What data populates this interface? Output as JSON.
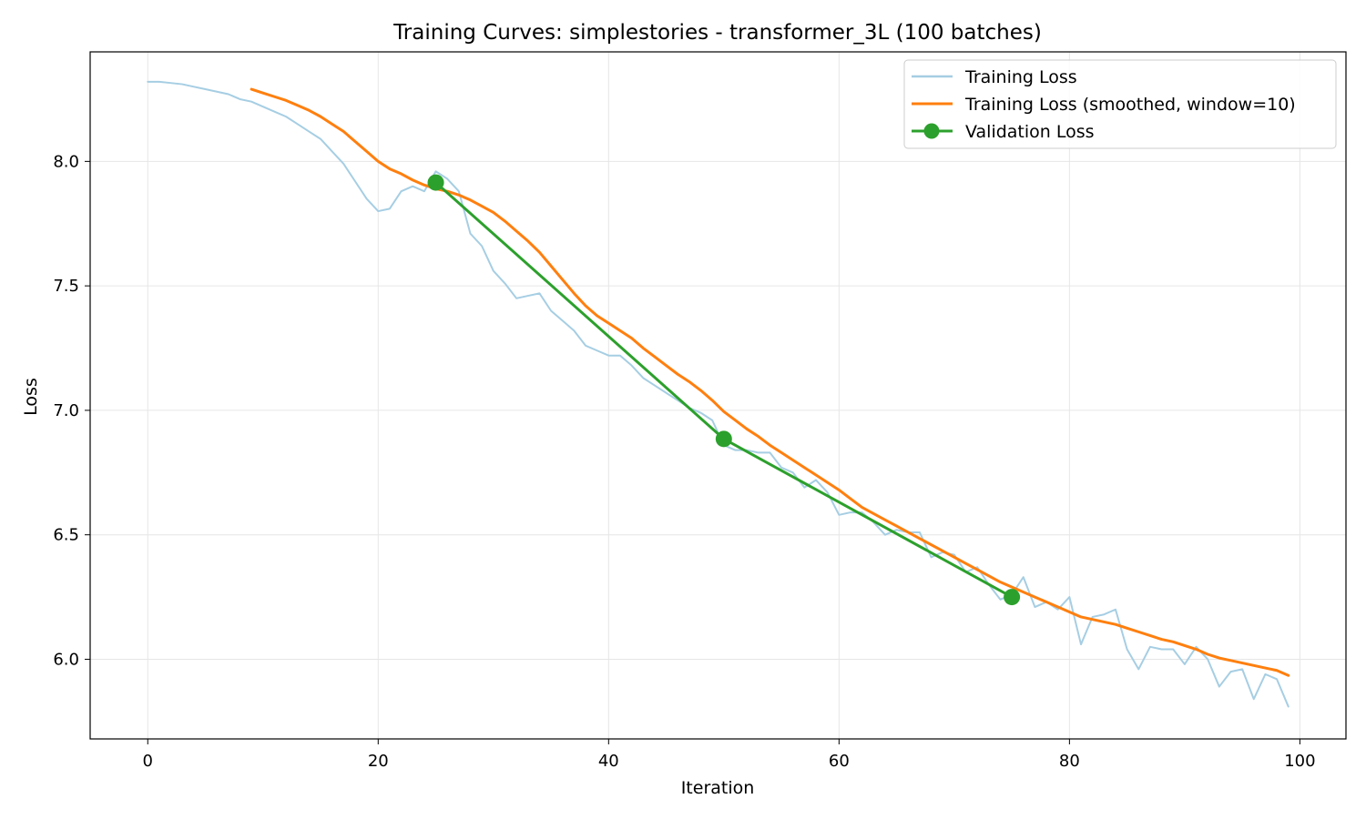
{
  "chart_data": {
    "type": "line",
    "title": "Training Curves: simplestories - transformer_3L (100 batches)",
    "xlabel": "Iteration",
    "ylabel": "Loss",
    "xlim": [
      -5,
      104
    ],
    "ylim": [
      5.68,
      8.44
    ],
    "x_ticks": [
      0,
      20,
      40,
      60,
      80,
      100
    ],
    "y_ticks": [
      6.0,
      6.5,
      7.0,
      7.5,
      8.0
    ],
    "x_tick_labels": [
      "0",
      "20",
      "40",
      "60",
      "80",
      "100"
    ],
    "y_tick_labels": [
      "6.0",
      "6.5",
      "7.0",
      "7.5",
      "8.0"
    ],
    "grid": true,
    "legend_position": "top-right",
    "series": [
      {
        "name": "Training Loss",
        "color": "#a6cee3",
        "style": "line",
        "x": [
          0,
          1,
          2,
          3,
          4,
          5,
          6,
          7,
          8,
          9,
          10,
          11,
          12,
          13,
          14,
          15,
          16,
          17,
          18,
          19,
          20,
          21,
          22,
          23,
          24,
          25,
          26,
          27,
          28,
          29,
          30,
          31,
          32,
          33,
          34,
          35,
          36,
          37,
          38,
          39,
          40,
          41,
          42,
          43,
          44,
          45,
          46,
          47,
          48,
          49,
          50,
          51,
          52,
          53,
          54,
          55,
          56,
          57,
          58,
          59,
          60,
          61,
          62,
          63,
          64,
          65,
          66,
          67,
          68,
          69,
          70,
          71,
          72,
          73,
          74,
          75,
          76,
          77,
          78,
          79,
          80,
          81,
          82,
          83,
          84,
          85,
          86,
          87,
          88,
          89,
          90,
          91,
          92,
          93,
          94,
          95,
          96,
          97,
          98,
          99
        ],
        "y": [
          8.32,
          8.32,
          8.315,
          8.31,
          8.3,
          8.29,
          8.28,
          8.27,
          8.25,
          8.24,
          8.22,
          8.2,
          8.18,
          8.15,
          8.12,
          8.09,
          8.04,
          7.99,
          7.92,
          7.85,
          7.8,
          7.81,
          7.88,
          7.9,
          7.88,
          7.96,
          7.93,
          7.88,
          7.71,
          7.66,
          7.56,
          7.51,
          7.45,
          7.46,
          7.47,
          7.4,
          7.36,
          7.32,
          7.26,
          7.24,
          7.22,
          7.22,
          7.18,
          7.13,
          7.1,
          7.07,
          7.04,
          7.01,
          6.99,
          6.96,
          6.86,
          6.84,
          6.84,
          6.83,
          6.83,
          6.77,
          6.75,
          6.69,
          6.72,
          6.67,
          6.58,
          6.59,
          6.59,
          6.55,
          6.5,
          6.52,
          6.51,
          6.51,
          6.41,
          6.43,
          6.42,
          6.35,
          6.37,
          6.3,
          6.24,
          6.26,
          6.33,
          6.21,
          6.23,
          6.2,
          6.25,
          6.06,
          6.17,
          6.18,
          6.2,
          6.04,
          5.96,
          6.05,
          6.04,
          6.04,
          5.98,
          6.05,
          6.0,
          5.89,
          5.95,
          5.96,
          5.84,
          5.94,
          5.92,
          5.81
        ]
      },
      {
        "name": "Training Loss (smoothed, window=10)",
        "color": "#ff7f0e",
        "style": "line",
        "x": [
          9,
          10,
          11,
          12,
          13,
          14,
          15,
          16,
          17,
          18,
          19,
          20,
          21,
          22,
          23,
          24,
          25,
          26,
          27,
          28,
          29,
          30,
          31,
          32,
          33,
          34,
          35,
          36,
          37,
          38,
          39,
          40,
          41,
          42,
          43,
          44,
          45,
          46,
          47,
          48,
          49,
          50,
          51,
          52,
          53,
          54,
          55,
          56,
          57,
          58,
          59,
          60,
          61,
          62,
          63,
          64,
          65,
          66,
          67,
          68,
          69,
          70,
          71,
          72,
          73,
          74,
          75,
          76,
          77,
          78,
          79,
          80,
          81,
          82,
          83,
          84,
          85,
          86,
          87,
          88,
          89,
          90,
          91,
          92,
          93,
          94,
          95,
          96,
          97,
          98,
          99
        ],
        "y": [
          8.29,
          8.275,
          8.26,
          8.245,
          8.225,
          8.205,
          8.18,
          8.15,
          8.12,
          8.08,
          8.04,
          8.0,
          7.97,
          7.95,
          7.925,
          7.905,
          7.89,
          7.88,
          7.865,
          7.845,
          7.82,
          7.795,
          7.76,
          7.72,
          7.68,
          7.635,
          7.58,
          7.525,
          7.47,
          7.42,
          7.38,
          7.35,
          7.32,
          7.29,
          7.25,
          7.215,
          7.18,
          7.145,
          7.115,
          7.08,
          7.04,
          6.995,
          6.96,
          6.925,
          6.895,
          6.86,
          6.83,
          6.8,
          6.77,
          6.74,
          6.71,
          6.68,
          6.645,
          6.61,
          6.585,
          6.56,
          6.535,
          6.51,
          6.485,
          6.46,
          6.435,
          6.41,
          6.385,
          6.36,
          6.335,
          6.31,
          6.29,
          6.27,
          6.25,
          6.23,
          6.21,
          6.19,
          6.17,
          6.16,
          6.15,
          6.14,
          6.125,
          6.11,
          6.095,
          6.08,
          6.07,
          6.055,
          6.04,
          6.02,
          6.005,
          5.995,
          5.985,
          5.975,
          5.965,
          5.955,
          5.935
        ]
      },
      {
        "name": "Validation Loss",
        "color": "#2ca02c",
        "style": "line-marker",
        "x": [
          25,
          50,
          75
        ],
        "y": [
          7.915,
          6.885,
          6.25
        ]
      }
    ]
  }
}
